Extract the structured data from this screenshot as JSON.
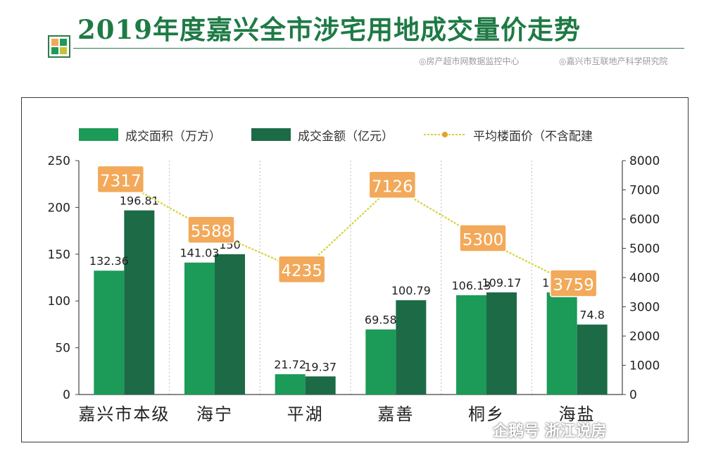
{
  "header": {
    "title": "2019年度嘉兴全市涉宅用地成交量价走势",
    "sources": [
      "◎房产超市网数据监控中心",
      "◎嘉兴市互联地产科学研究院"
    ]
  },
  "colors": {
    "title": "#1e7a45",
    "area_bar": "#1c9a57",
    "amount_bar": "#1d6a47",
    "price_line": "#d8d23a",
    "price_label_bg": "#f2a95a",
    "price_label_text": "#ffffff"
  },
  "watermark": "企鹅号 浙江说房",
  "chart_data": {
    "type": "bar",
    "categories": [
      "嘉兴市本级",
      "海宁",
      "平湖",
      "嘉善",
      "桐乡",
      "海盐"
    ],
    "series": [
      {
        "name": "成交面积（万方）",
        "kind": "bar",
        "axis": "left",
        "values": [
          132.36,
          141.03,
          21.72,
          69.58,
          106.13,
          109.17
        ]
      },
      {
        "name": "成交金额（亿元）",
        "kind": "bar",
        "axis": "left",
        "values": [
          196.81,
          150,
          19.37,
          100.79,
          109.17,
          74.8
        ]
      },
      {
        "name": "平均楼面价（不含配建",
        "kind": "line",
        "axis": "right",
        "values": [
          7317,
          5588,
          4235,
          7126,
          5300,
          3759
        ]
      }
    ],
    "y_left": {
      "min": 0,
      "max": 250,
      "ticks": [
        0,
        50,
        100,
        150,
        200,
        250
      ]
    },
    "y_right": {
      "min": 0,
      "max": 8000,
      "ticks": [
        0,
        1000,
        2000,
        3000,
        4000,
        5000,
        6000,
        7000,
        8000
      ]
    },
    "legend_position": "top",
    "grid": "vertical-dotted"
  }
}
